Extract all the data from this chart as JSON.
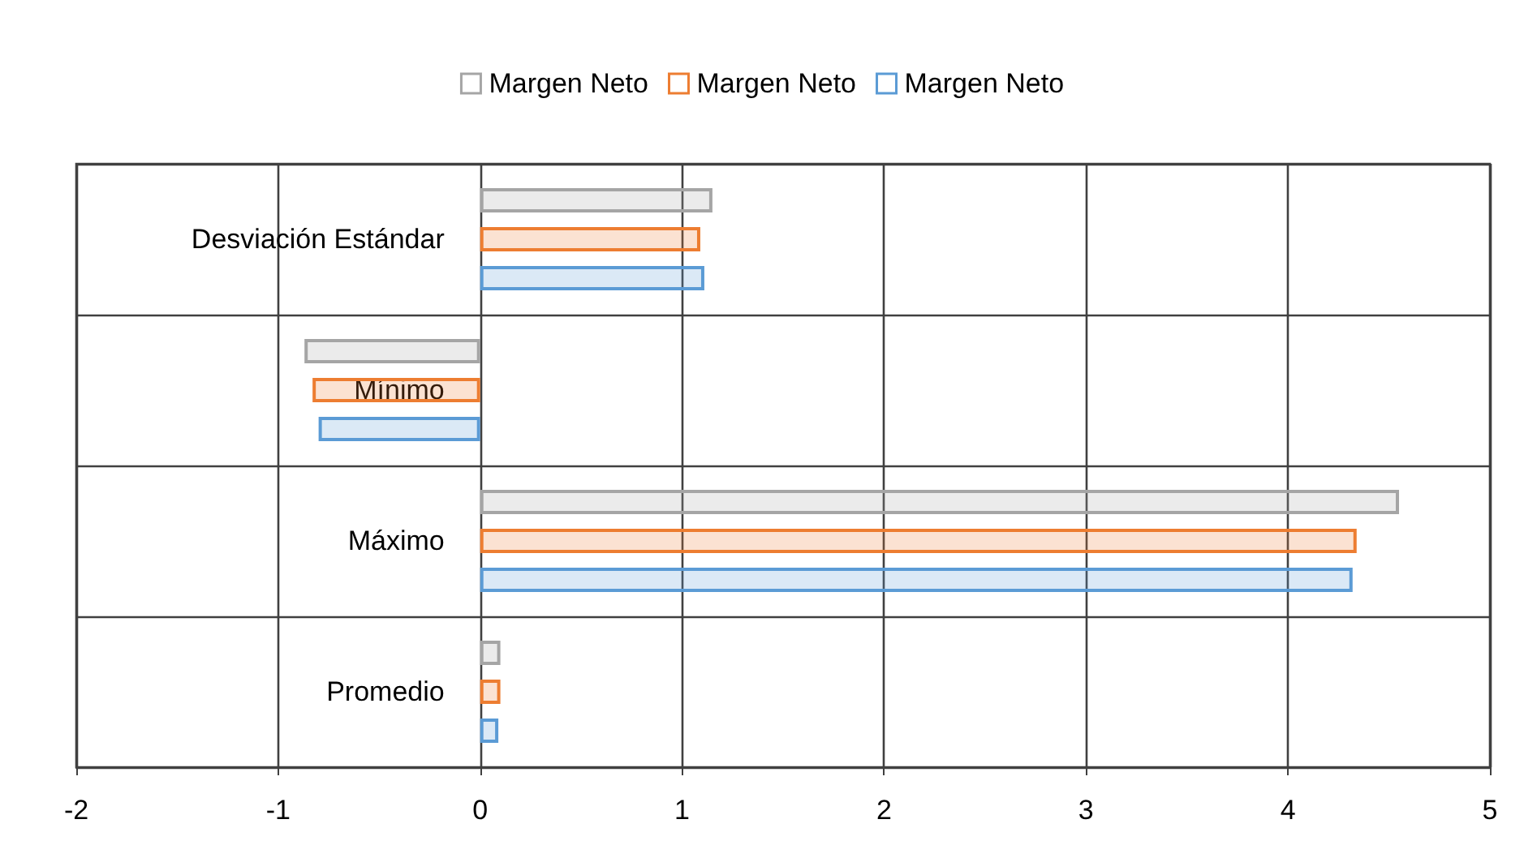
{
  "chart_data": {
    "type": "bar",
    "orientation": "horizontal",
    "categories": [
      "Desviación Estándar",
      "Mínimo",
      "Máximo",
      "Promedio"
    ],
    "series": [
      {
        "name": "Margen Neto",
        "color": "#a5a5a5",
        "values": [
          1.15,
          -0.87,
          4.55,
          0.1
        ]
      },
      {
        "name": "Margen Neto",
        "color": "#ed7d31",
        "values": [
          1.09,
          -0.83,
          4.34,
          0.1
        ]
      },
      {
        "name": "Margen Neto",
        "color": "#5b9bd5",
        "values": [
          1.11,
          -0.8,
          4.32,
          0.09
        ]
      }
    ],
    "xlim": [
      -2,
      5
    ],
    "xticks": [
      -2,
      -1,
      0,
      1,
      2,
      3,
      4,
      5
    ],
    "grid": true,
    "legend": "top"
  }
}
